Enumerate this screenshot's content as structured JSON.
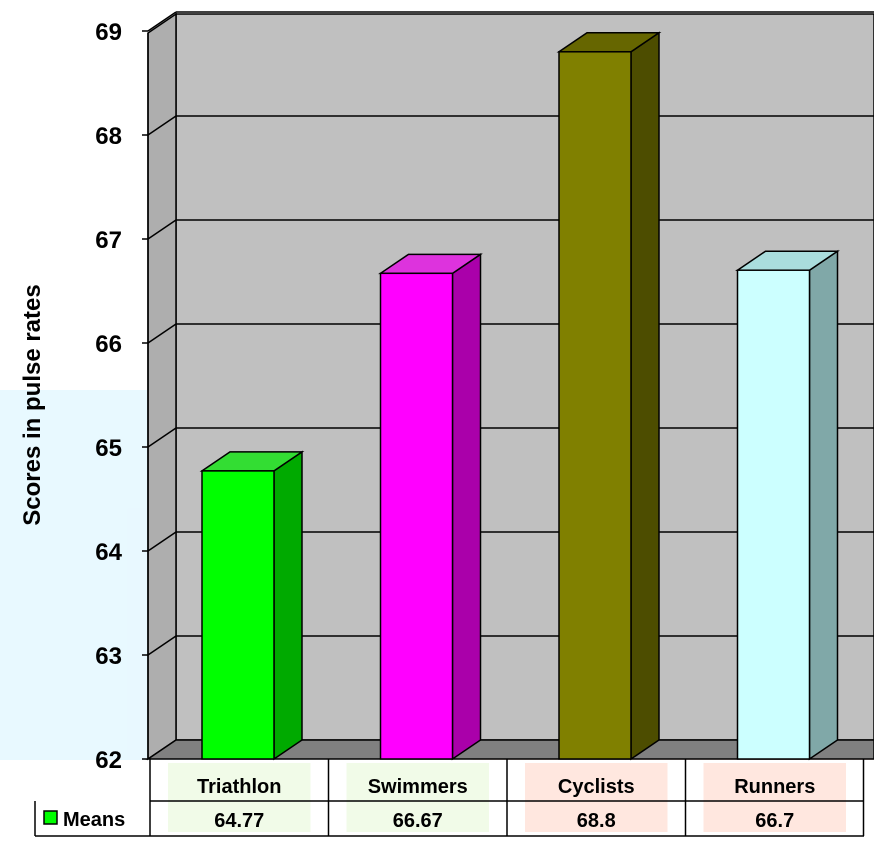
{
  "chart_data": {
    "type": "bar",
    "ylabel": "Scores in pulse rates",
    "ylim": [
      62,
      69
    ],
    "yticks": [
      62,
      63,
      64,
      65,
      66,
      67,
      68,
      69
    ],
    "categories": [
      "Triathlon",
      "Swimmers",
      "Cyclists",
      "Runners"
    ],
    "series": [
      {
        "name": "Means",
        "values": [
          64.77,
          66.67,
          68.8,
          66.7
        ],
        "value_labels": [
          "64.77",
          "66.67",
          "68.8",
          "66.7"
        ]
      }
    ],
    "grid": true,
    "legend_placement": "data-table-left",
    "bar_colors": [
      {
        "front": "#00ff00",
        "side": "#00aa00",
        "top": "#33dd33"
      },
      {
        "front": "#ff00ff",
        "side": "#aa00aa",
        "top": "#dd33dd"
      },
      {
        "front": "#808000",
        "side": "#4d4d00",
        "top": "#666600"
      },
      {
        "front": "#ccffff",
        "side": "#80a8a8",
        "top": "#aadddd"
      }
    ],
    "legend_color": "#00ff00",
    "wall_color": "#c0c0c0"
  }
}
